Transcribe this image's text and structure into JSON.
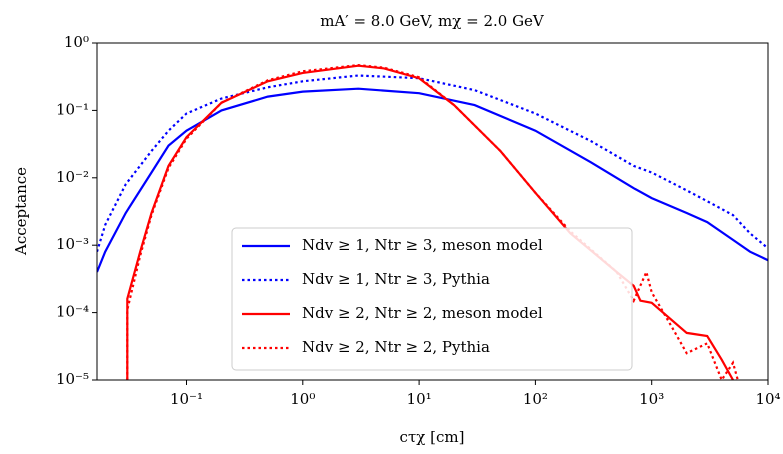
{
  "chart_data": {
    "type": "line",
    "title": "mA′ = 8.0 GeV, mχ = 2.0 GeV",
    "x_label": "cτχ [cm]",
    "y_label": "Acceptance",
    "log_x": true,
    "log_y": true,
    "xlim": [
      0.017,
      10000
    ],
    "ylim": [
      1e-05,
      1
    ],
    "xticks": [
      {
        "value": 0.1,
        "label": "10⁻¹"
      },
      {
        "value": 1,
        "label": "10⁰"
      },
      {
        "value": 10,
        "label": "10¹"
      },
      {
        "value": 100,
        "label": "10²"
      },
      {
        "value": 1000,
        "label": "10³"
      },
      {
        "value": 10000,
        "label": "10⁴"
      }
    ],
    "yticks": [
      {
        "value": 1e-05,
        "label": "10⁻⁵"
      },
      {
        "value": 0.0001,
        "label": "10⁻⁴"
      },
      {
        "value": 0.001,
        "label": "10⁻³"
      },
      {
        "value": 0.01,
        "label": "10⁻²"
      },
      {
        "value": 0.1,
        "label": "10⁻¹"
      },
      {
        "value": 1,
        "label": "10⁰"
      }
    ],
    "legend": "lower center",
    "series": [
      {
        "name": "Ndv ≥ 1, Ntr ≥ 3, meson model",
        "color": "#0000ff",
        "dash": "solid",
        "x": [
          0.017,
          0.02,
          0.03,
          0.05,
          0.07,
          0.1,
          0.2,
          0.5,
          1,
          3,
          10,
          30,
          100,
          300,
          700,
          1000,
          2000,
          3000,
          5000,
          7000,
          10000
        ],
        "values": [
          0.0004,
          0.0008,
          0.003,
          0.012,
          0.03,
          0.05,
          0.1,
          0.16,
          0.19,
          0.21,
          0.18,
          0.12,
          0.05,
          0.017,
          0.007,
          0.005,
          0.003,
          0.0022,
          0.0012,
          0.0008,
          0.0006
        ]
      },
      {
        "name": "Ndv ≥ 1, Ntr ≥ 3, Pythia",
        "color": "#0000ff",
        "dash": "dotted",
        "x": [
          0.017,
          0.02,
          0.03,
          0.05,
          0.07,
          0.1,
          0.2,
          0.5,
          1,
          3,
          10,
          30,
          100,
          300,
          700,
          1000,
          2000,
          3000,
          5000,
          7000,
          10000
        ],
        "values": [
          0.0008,
          0.002,
          0.008,
          0.025,
          0.05,
          0.09,
          0.15,
          0.22,
          0.27,
          0.33,
          0.3,
          0.2,
          0.09,
          0.035,
          0.015,
          0.012,
          0.0065,
          0.0045,
          0.0028,
          0.0015,
          0.0009
        ]
      },
      {
        "name": "Ndv ≥ 2, Ntr ≥ 2, meson model",
        "color": "#ff0000",
        "dash": "solid",
        "x": [
          0.031,
          0.031,
          0.04,
          0.05,
          0.07,
          0.1,
          0.2,
          0.5,
          1,
          3,
          5,
          10,
          20,
          50,
          100,
          200,
          500,
          700,
          800,
          1000,
          2000,
          3000,
          4000,
          5000
        ],
        "values": [
          1e-05,
          0.00016,
          0.0008,
          0.003,
          0.015,
          0.04,
          0.13,
          0.27,
          0.36,
          0.46,
          0.42,
          0.3,
          0.12,
          0.025,
          0.006,
          0.0015,
          0.0004,
          0.00025,
          0.00015,
          0.00014,
          5e-05,
          4.5e-05,
          2e-05,
          1e-05
        ]
      },
      {
        "name": "Ndv ≥ 2, Ntr ≥ 2, Pythia",
        "color": "#ff0000",
        "dash": "dotted",
        "x": [
          0.031,
          0.031,
          0.04,
          0.05,
          0.07,
          0.1,
          0.2,
          0.5,
          1,
          3,
          5,
          10,
          20,
          50,
          100,
          200,
          500,
          700,
          900,
          1000,
          1500,
          2000,
          3000,
          4000,
          5000,
          5500
        ],
        "values": [
          1e-05,
          0.00011,
          0.0007,
          0.0028,
          0.014,
          0.038,
          0.13,
          0.28,
          0.38,
          0.47,
          0.43,
          0.31,
          0.12,
          0.025,
          0.006,
          0.0016,
          0.0004,
          0.00015,
          0.0004,
          0.0002,
          6e-05,
          2.5e-05,
          3.5e-05,
          1e-05,
          1.8e-05,
          1e-05
        ]
      }
    ]
  }
}
